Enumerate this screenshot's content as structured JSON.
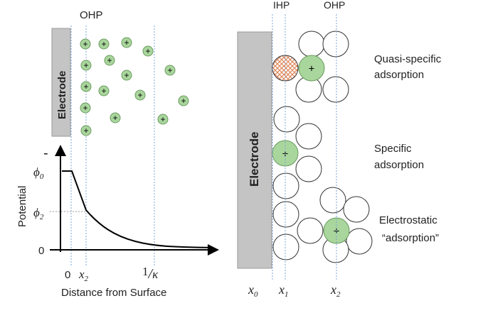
{
  "left_panel": {
    "ohp_label": "OHP",
    "electrode_label": "Electrode",
    "ion_symbol": "+",
    "y_axis_label": "Potential",
    "y_top_mark": "-",
    "phi0_label": "ϕ0",
    "phi2_label": "ϕ2",
    "y_zero_label": "0",
    "x_zero_label": "0",
    "x2_label": "x2",
    "inv_kappa_label": "1/κ",
    "x_axis_label": "Distance from Surface"
  },
  "right_panel": {
    "ihp_label": "IHP",
    "ohp_label": "OHP",
    "electrode_label": "Electrode",
    "quasi_label_1": "Quasi-specific",
    "quasi_label_2": "adsorption",
    "specific_label_1": "Specific",
    "specific_label_2": "adsorption",
    "electrostatic_label_1": "Electrostatic",
    "electrostatic_label_2": "“adsorption”",
    "x0_label": "x0",
    "x1_label": "x1",
    "x2_label": "x2"
  },
  "colors": {
    "electrode_fill": "#c4c4c4",
    "cation_fill": "#a9d69c",
    "plane_line": "#7aa6d6",
    "hatched_ion": "#e0875a"
  }
}
